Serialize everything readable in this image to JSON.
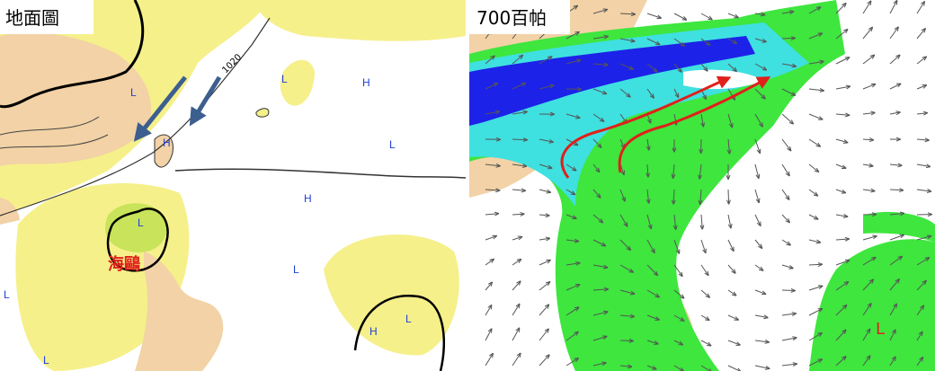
{
  "panels": [
    {
      "title": "地面圖",
      "typhoon_name": "海鷗",
      "isobar_label": "1020",
      "pressure_labels": [
        "L",
        "L",
        "H",
        "H",
        "L",
        "H",
        "L",
        "L",
        "H",
        "L",
        "L",
        "L"
      ]
    },
    {
      "title": "700百帕",
      "pressure_labels": [
        "L"
      ]
    }
  ]
}
